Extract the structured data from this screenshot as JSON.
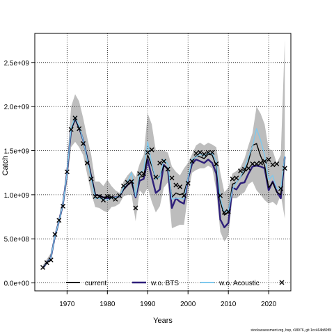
{
  "chart_data": {
    "type": "line",
    "xlabel": "Years",
    "ylabel": "Catch",
    "xlim": [
      1962,
      2025.5
    ],
    "ylim": [
      -90000000,
      2830000000
    ],
    "xticks": [
      1970,
      1980,
      1990,
      2000,
      2010,
      2020
    ],
    "xtick_labels": [
      "1970",
      "1980",
      "1990",
      "2000",
      "2010",
      "2020"
    ],
    "yticks": [
      0,
      500000000,
      1000000000,
      1500000000,
      2000000000,
      2500000000
    ],
    "ytick_labels": [
      "0.0e+00",
      "5.0e+08",
      "1.0e+09",
      "1.5e+09",
      "2.0e+09",
      "2.5e+09"
    ],
    "grid": true,
    "legend_position": "bottom",
    "band": {
      "x": [
        1964,
        1965,
        1966,
        1967,
        1968,
        1969,
        1970,
        1971,
        1972,
        1973,
        1974,
        1975,
        1976,
        1977,
        1978,
        1979,
        1980,
        1981,
        1982,
        1983,
        1984,
        1985,
        1986,
        1987,
        1988,
        1989,
        1990,
        1991,
        1992,
        1993,
        1994,
        1995,
        1996,
        1997,
        1998,
        1999,
        2000,
        2001,
        2002,
        2003,
        2004,
        2005,
        2006,
        2007,
        2008,
        2009,
        2010,
        2011,
        2012,
        2013,
        2014,
        2015,
        2016,
        2017,
        2018,
        2019,
        2020,
        2021,
        2022,
        2023,
        2024
      ],
      "upper": [
        200000000,
        270000000,
        340000000,
        560000000,
        750000000,
        950000000,
        1350000000,
        2000000000,
        2140000000,
        2060000000,
        1870000000,
        1650000000,
        1450000000,
        1150000000,
        1150000000,
        1100000000,
        1170000000,
        1100000000,
        1050000000,
        1020000000,
        1150000000,
        1220000000,
        1270000000,
        1200000000,
        1350000000,
        1450000000,
        1920000000,
        1800000000,
        1500000000,
        1510000000,
        1500000000,
        1480000000,
        1320000000,
        1260000000,
        1220000000,
        1300000000,
        1360000000,
        1460000000,
        1560000000,
        1590000000,
        1560000000,
        1590000000,
        1570000000,
        1540000000,
        1250000000,
        1030000000,
        1080000000,
        1240000000,
        1270000000,
        1310000000,
        1410000000,
        1560000000,
        1700000000,
        2000000000,
        1920000000,
        1800000000,
        1520000000,
        1500000000,
        1360000000,
        1450000000,
        2760000000
      ],
      "lower": [
        150000000,
        210000000,
        250000000,
        500000000,
        660000000,
        850000000,
        1140000000,
        1540000000,
        1600000000,
        1540000000,
        1450000000,
        1230000000,
        1020000000,
        860000000,
        850000000,
        820000000,
        800000000,
        860000000,
        870000000,
        900000000,
        980000000,
        1000000000,
        1000000000,
        700000000,
        1050000000,
        1000000000,
        1080000000,
        920000000,
        800000000,
        870000000,
        1080000000,
        1140000000,
        620000000,
        640000000,
        660000000,
        660000000,
        1000000000,
        1250000000,
        1280000000,
        1300000000,
        1300000000,
        1330000000,
        1300000000,
        1050000000,
        580000000,
        470000000,
        540000000,
        960000000,
        960000000,
        1000000000,
        1030000000,
        1120000000,
        1150000000,
        1050000000,
        1000000000,
        940000000,
        900000000,
        920000000,
        880000000,
        1000000000,
        730000000
      ]
    },
    "series": [
      {
        "name": "current",
        "color": "#000000",
        "x": [
          1964,
          1965,
          1966,
          1967,
          1968,
          1969,
          1970,
          1971,
          1972,
          1973,
          1974,
          1975,
          1976,
          1977,
          1978,
          1979,
          1980,
          1981,
          1982,
          1983,
          1984,
          1985,
          1986,
          1987,
          1988,
          1989,
          1990,
          1991,
          1992,
          1993,
          1994,
          1995,
          1996,
          1997,
          1998,
          1999,
          2000,
          2001,
          2002,
          2003,
          2004,
          2005,
          2006,
          2007,
          2008,
          2009,
          2010,
          2011,
          2012,
          2013,
          2014,
          2015,
          2016,
          2017,
          2018,
          2019,
          2020,
          2021,
          2022,
          2023,
          2024
        ],
        "values": [
          170000000,
          230000000,
          290000000,
          530000000,
          700000000,
          900000000,
          1250000000,
          1740000000,
          1860000000,
          1760000000,
          1620000000,
          1420000000,
          1210000000,
          1000000000,
          990000000,
          970000000,
          980000000,
          970000000,
          970000000,
          980000000,
          1060000000,
          1110000000,
          1150000000,
          980000000,
          1200000000,
          1210000000,
          1450000000,
          1330000000,
          1180000000,
          1210000000,
          1330000000,
          1300000000,
          970000000,
          1020000000,
          1000000000,
          1020000000,
          1180000000,
          1380000000,
          1440000000,
          1430000000,
          1410000000,
          1460000000,
          1450000000,
          1320000000,
          920000000,
          770000000,
          800000000,
          1120000000,
          1140000000,
          1200000000,
          1260000000,
          1380000000,
          1560000000,
          1580000000,
          1440000000,
          1330000000,
          1080000000,
          1140000000,
          1030000000,
          1000000000,
          1420000000
        ]
      },
      {
        "name": "w.o. BTS",
        "color": "#2e1f7a",
        "x": [
          1964,
          1965,
          1966,
          1967,
          1968,
          1969,
          1970,
          1971,
          1972,
          1973,
          1974,
          1975,
          1976,
          1977,
          1978,
          1979,
          1980,
          1981,
          1982,
          1983,
          1984,
          1985,
          1986,
          1987,
          1988,
          1989,
          1990,
          1991,
          1992,
          1993,
          1994,
          1995,
          1996,
          1997,
          1998,
          1999,
          2000,
          2001,
          2002,
          2003,
          2004,
          2005,
          2006,
          2007,
          2008,
          2009,
          2010,
          2011,
          2012,
          2013,
          2014,
          2015,
          2016,
          2017,
          2018,
          2019,
          2020,
          2021,
          2022,
          2023,
          2024
        ],
        "values": [
          170000000,
          230000000,
          290000000,
          530000000,
          700000000,
          900000000,
          1250000000,
          1740000000,
          1860000000,
          1760000000,
          1620000000,
          1420000000,
          1210000000,
          1000000000,
          990000000,
          970000000,
          960000000,
          970000000,
          970000000,
          980000000,
          1060000000,
          1110000000,
          1150000000,
          970000000,
          1160000000,
          1180000000,
          1400000000,
          1200000000,
          1020000000,
          1060000000,
          1340000000,
          1290000000,
          850000000,
          960000000,
          920000000,
          900000000,
          1180000000,
          1350000000,
          1400000000,
          1380000000,
          1360000000,
          1400000000,
          1360000000,
          1240000000,
          720000000,
          630000000,
          680000000,
          1080000000,
          1060000000,
          1130000000,
          1140000000,
          1240000000,
          1320000000,
          1330000000,
          1320000000,
          1300000000,
          1050000000,
          1150000000,
          1040000000,
          960000000,
          1430000000
        ]
      },
      {
        "name": "w.o. Acoustic",
        "color": "#7ec9ee",
        "x": [
          1964,
          1965,
          1966,
          1967,
          1968,
          1969,
          1970,
          1971,
          1972,
          1973,
          1974,
          1975,
          1976,
          1977,
          1978,
          1979,
          1980,
          1981,
          1982,
          1983,
          1984,
          1985,
          1986,
          1987,
          1988,
          1989,
          1990,
          1991,
          1992,
          1993,
          1994,
          1995,
          1996,
          1997,
          1998,
          1999,
          2000,
          2001,
          2002,
          2003,
          2004,
          2005,
          2006,
          2007,
          2008,
          2009,
          2010,
          2011,
          2012,
          2013,
          2014,
          2015,
          2016,
          2017,
          2018,
          2019,
          2020,
          2021,
          2022,
          2023,
          2024
        ],
        "values": [
          170000000,
          230000000,
          290000000,
          530000000,
          700000000,
          900000000,
          1250000000,
          1760000000,
          1880000000,
          1780000000,
          1620000000,
          1400000000,
          1180000000,
          960000000,
          960000000,
          950000000,
          940000000,
          960000000,
          970000000,
          980000000,
          1080000000,
          1150000000,
          1250000000,
          980000000,
          1250000000,
          1280000000,
          1600000000,
          1350000000,
          1180000000,
          1200000000,
          1400000000,
          1350000000,
          950000000,
          960000000,
          960000000,
          950000000,
          1190000000,
          1400000000,
          1430000000,
          1460000000,
          1440000000,
          1470000000,
          1470000000,
          1380000000,
          960000000,
          800000000,
          820000000,
          1060000000,
          1140000000,
          1200000000,
          1300000000,
          1430000000,
          1550000000,
          1750000000,
          1620000000,
          1450000000,
          1170000000,
          1220000000,
          1070000000,
          1060000000,
          1440000000
        ]
      }
    ],
    "observed": {
      "name": "",
      "x": [
        1964,
        1965,
        1966,
        1967,
        1968,
        1969,
        1970,
        1971,
        1972,
        1973,
        1974,
        1975,
        1976,
        1977,
        1978,
        1979,
        1980,
        1981,
        1982,
        1983,
        1984,
        1985,
        1986,
        1987,
        1988,
        1989,
        1990,
        1991,
        1992,
        1993,
        1994,
        1995,
        1996,
        1997,
        1998,
        1999,
        2000,
        2001,
        2002,
        2003,
        2004,
        2005,
        2006,
        2007,
        2008,
        2009,
        2010,
        2011,
        2012,
        2013,
        2014,
        2015,
        2016,
        2017,
        2018,
        2019,
        2020,
        2021,
        2022,
        2023,
        2024
      ],
      "values": [
        175000000,
        230000000,
        260000000,
        550000000,
        710000000,
        870000000,
        1260000000,
        1740000000,
        1870000000,
        1750000000,
        1580000000,
        1360000000,
        1180000000,
        980000000,
        980000000,
        940000000,
        980000000,
        970000000,
        950000000,
        990000000,
        1100000000,
        1140000000,
        1150000000,
        850000000,
        1240000000,
        1240000000,
        1480000000,
        1510000000,
        1200000000,
        1360000000,
        1380000000,
        1290000000,
        1190000000,
        1110000000,
        1090000000,
        990000000,
        1130000000,
        1380000000,
        1470000000,
        1480000000,
        1460000000,
        1480000000,
        1480000000,
        1350000000,
        990000000,
        800000000,
        810000000,
        1180000000,
        1190000000,
        1270000000,
        1290000000,
        1300000000,
        1350000000,
        1350000000,
        1360000000,
        1380000000,
        1400000000,
        1340000000,
        1350000000,
        1070000000,
        1300000000
      ]
    }
  },
  "footer_text": "stockassessment.org, bsp, r18976, git 1cc464b80f6f"
}
